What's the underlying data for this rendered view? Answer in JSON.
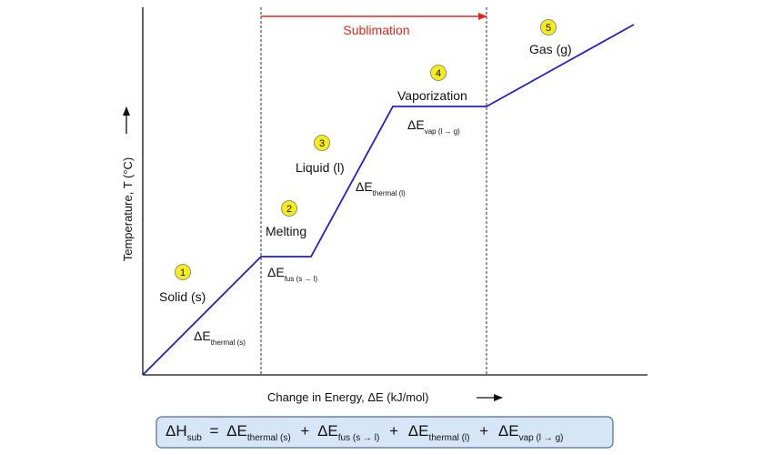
{
  "chart_data": {
    "type": "line",
    "title": "",
    "xlabel": "Change in Energy, ΔE (kJ/mol)",
    "ylabel": "Temperature, T (°C)",
    "grid": false,
    "series": [
      {
        "x": [
          0,
          130,
          185,
          275,
          378,
          540
        ],
        "y": [
          0,
          130,
          130,
          295,
          295,
          385
        ]
      }
    ],
    "phase_boundaries_x": [
      130,
      378
    ],
    "sublimation_label": "Sublimation",
    "phases": [
      {
        "num": "1",
        "name": "Solid (s)",
        "delta_main": "ΔE",
        "delta_sub": "thermal (s)"
      },
      {
        "num": "2",
        "name": "Melting",
        "delta_main": "ΔE",
        "delta_sub": "fus (s → l)"
      },
      {
        "num": "3",
        "name": "Liquid (l)",
        "delta_main": "ΔE",
        "delta_sub": "thermal (l)"
      },
      {
        "num": "4",
        "name": "Vaporization",
        "delta_main": "ΔE",
        "delta_sub": "vap (l → g)"
      },
      {
        "num": "5",
        "name": "Gas (g)",
        "delta_main": "",
        "delta_sub": ""
      }
    ],
    "colors": {
      "line": "#1f1fd6",
      "arrow": "#e8241e",
      "badge": "#f5ec1a",
      "formula_bg": "#d6e6f7"
    }
  },
  "formula": {
    "lhs_main": "ΔH",
    "lhs_sub": "sub",
    "eq": "=",
    "plus": "+",
    "terms": [
      {
        "main": "ΔE",
        "sub": "thermal (s)"
      },
      {
        "main": "ΔE",
        "sub": "fus (s → l)"
      },
      {
        "main": "ΔE",
        "sub": "thermal (l)"
      },
      {
        "main": "ΔE",
        "sub": "vap (l → g)"
      }
    ]
  }
}
